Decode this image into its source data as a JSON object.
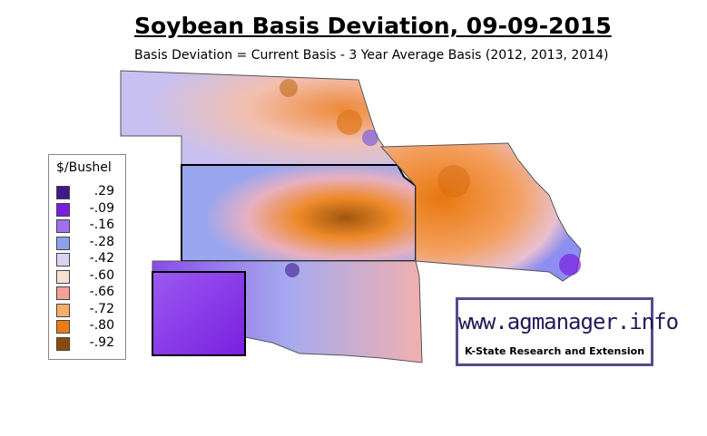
{
  "header": {
    "title": "Soybean Basis Deviation, 09-09-2015",
    "subtitle": "Basis Deviation = Current Basis - 3 Year Average Basis (2012, 2013, 2014)"
  },
  "legend": {
    "title": "$/Bushel",
    "items": [
      {
        "label": ".29",
        "color": "#3d1a8c"
      },
      {
        "label": "-.09",
        "color": "#7a1fe0"
      },
      {
        "label": "-.16",
        "color": "#a070f0"
      },
      {
        "label": "-.28",
        "color": "#8ea0ee"
      },
      {
        "label": "-.42",
        "color": "#dcd2f4"
      },
      {
        "label": "-.60",
        "color": "#f6e0d4"
      },
      {
        "label": "-.66",
        "color": "#f2a098"
      },
      {
        "label": "-.72",
        "color": "#f6ae6a"
      },
      {
        "label": "-.80",
        "color": "#ee7a14"
      },
      {
        "label": "-.92",
        "color": "#8a4a0a"
      }
    ]
  },
  "logo": {
    "url": "www.agmanager.info",
    "org": "K-State Research and Extension"
  }
}
